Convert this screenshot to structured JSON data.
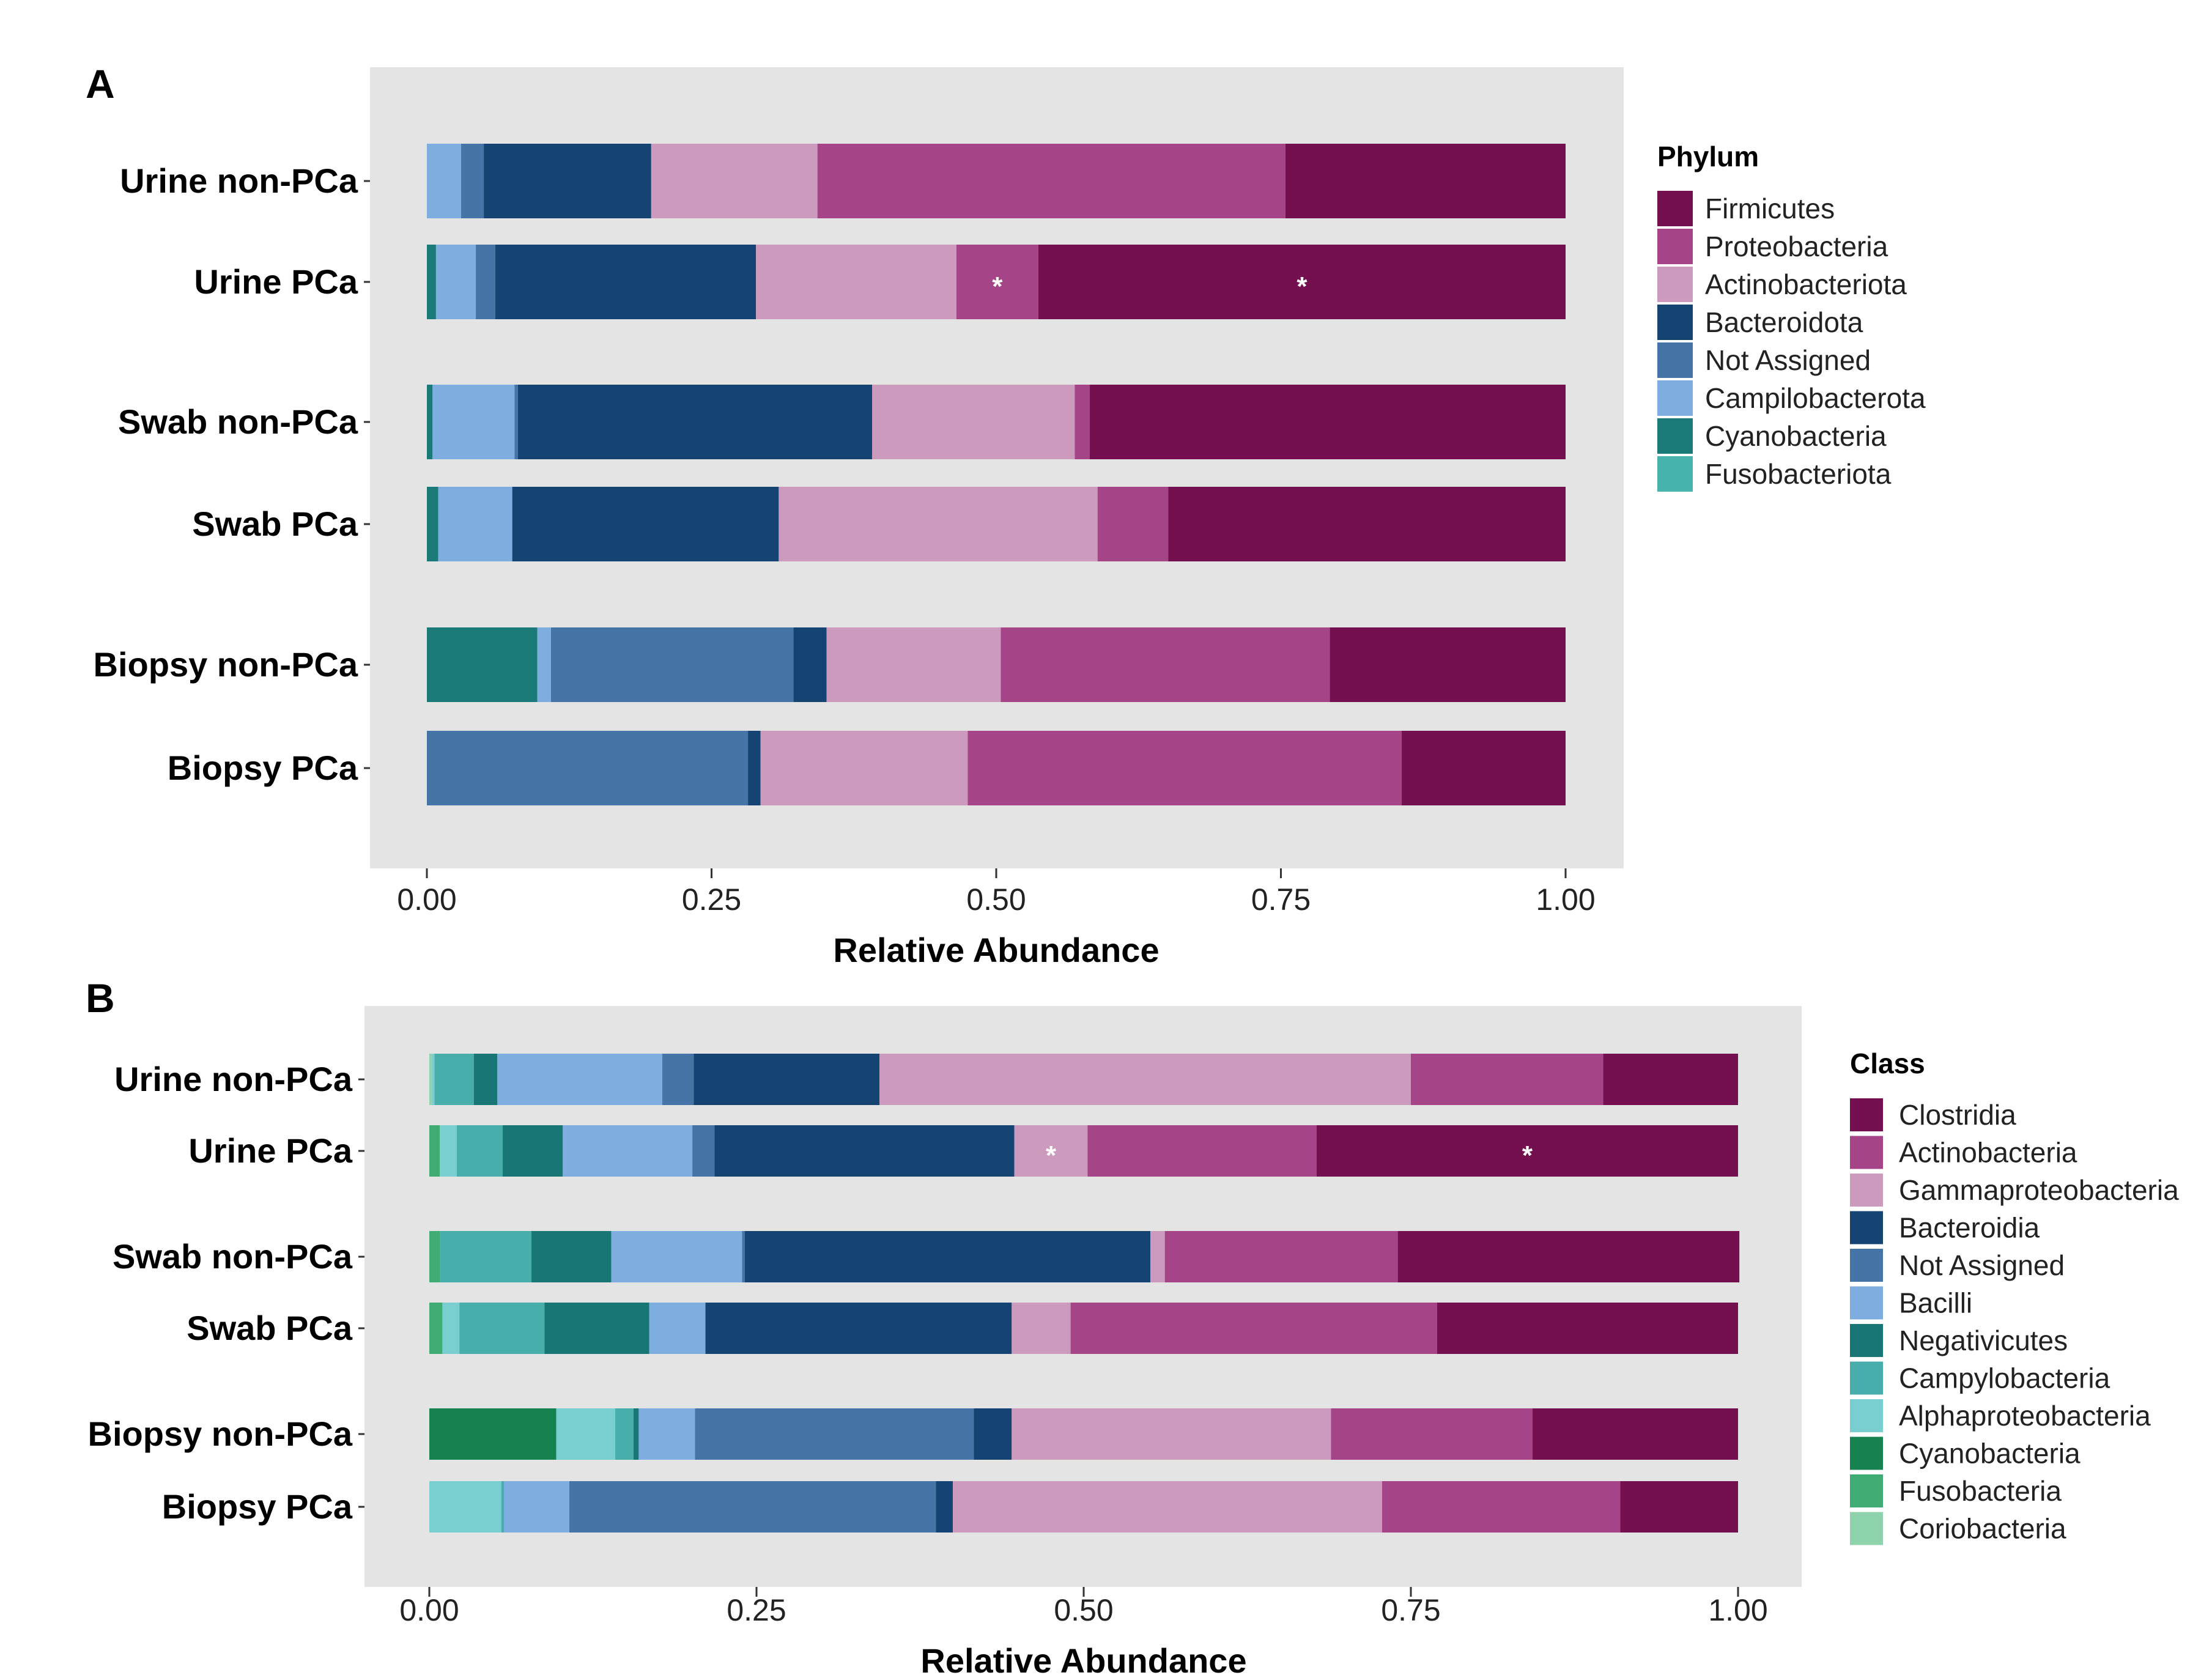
{
  "chart_data": [
    {
      "type": "bar",
      "orientation": "horizontal",
      "stacked": true,
      "panel_label": "A",
      "xlabel": "Relative Abundance",
      "ylabel": "",
      "xlim": [
        0,
        1
      ],
      "xticks": [
        "0.00",
        "0.25",
        "0.50",
        "0.75",
        "1.00"
      ],
      "grid": false,
      "legend_title": "Phylum",
      "legend_position": "right",
      "categories": [
        "Urine non-PCa",
        "Urine PCa",
        "Swab non-PCa",
        "Swab PCa",
        "Biopsy non-PCa",
        "Biopsy PCa"
      ],
      "series": [
        {
          "name": "Fusobacteriota",
          "color": "#48b3ad",
          "values": [
            0.0,
            0.0,
            0.0,
            0.0,
            0.0,
            0.0
          ]
        },
        {
          "name": "Cyanobacteria",
          "color": "#1a7a78",
          "values": [
            0.0,
            0.008,
            0.005,
            0.01,
            0.097,
            0.0
          ]
        },
        {
          "name": "Campilobacterota",
          "color": "#7eaee0",
          "values": [
            0.03,
            0.035,
            0.072,
            0.065,
            0.012,
            0.0
          ]
        },
        {
          "name": "Not Assigned",
          "color": "#4574a7",
          "values": [
            0.02,
            0.017,
            0.003,
            0.0,
            0.213,
            0.282
          ]
        },
        {
          "name": "Bacteroidota",
          "color": "#154473",
          "values": [
            0.147,
            0.229,
            0.311,
            0.234,
            0.029,
            0.011
          ]
        },
        {
          "name": "Actinobacteriota",
          "color": "#cc9abd",
          "values": [
            0.146,
            0.176,
            0.178,
            0.28,
            0.153,
            0.182
          ]
        },
        {
          "name": "Proteobacteria",
          "color": "#a54486",
          "values": [
            0.411,
            0.072,
            0.013,
            0.062,
            0.289,
            0.381
          ]
        },
        {
          "name": "Firmicutes",
          "color": "#74104f",
          "values": [
            0.246,
            0.463,
            0.418,
            0.349,
            0.207,
            0.144
          ]
        }
      ],
      "legend_order": [
        "Firmicutes",
        "Proteobacteria",
        "Actinobacteriota",
        "Bacteroidota",
        "Not Assigned",
        "Campilobacterota",
        "Cyanobacteria",
        "Fusobacteriota"
      ],
      "annotations": [
        {
          "category": "Urine PCa",
          "series": "Proteobacteria",
          "text": "*"
        },
        {
          "category": "Urine PCa",
          "series": "Firmicutes",
          "text": "*"
        }
      ]
    },
    {
      "type": "bar",
      "orientation": "horizontal",
      "stacked": true,
      "panel_label": "B",
      "xlabel": "Relative Abundance",
      "ylabel": "",
      "xlim": [
        0,
        1
      ],
      "xticks": [
        "0.00",
        "0.25",
        "0.50",
        "0.75",
        "1.00"
      ],
      "grid": false,
      "legend_title": "Class",
      "legend_position": "right",
      "categories": [
        "Urine non-PCa",
        "Urine PCa",
        "Swab non-PCa",
        "Swab PCa",
        "Biopsy non-PCa",
        "Biopsy PCa"
      ],
      "series": [
        {
          "name": "Coriobacteria",
          "color": "#8fd3ad",
          "values": [
            0.002,
            0.0,
            0.0,
            0.0,
            0.0,
            0.0
          ]
        },
        {
          "name": "Fusobacteria",
          "color": "#3fac74",
          "values": [
            0.0,
            0.008,
            0.008,
            0.01,
            0.0,
            0.0
          ]
        },
        {
          "name": "Cyanobacteria",
          "color": "#16824f",
          "values": [
            0.0,
            0.0,
            0.0,
            0.0,
            0.097,
            0.0
          ]
        },
        {
          "name": "Alphaproteobacteria",
          "color": "#79cfd0",
          "values": [
            0.002,
            0.013,
            0.0,
            0.013,
            0.045,
            0.055
          ]
        },
        {
          "name": "Campylobacteria",
          "color": "#48aeab",
          "values": [
            0.03,
            0.035,
            0.07,
            0.065,
            0.014,
            0.002
          ]
        },
        {
          "name": "Negativicutes",
          "color": "#187775",
          "values": [
            0.018,
            0.046,
            0.061,
            0.08,
            0.004,
            0.0
          ]
        },
        {
          "name": "Bacilli",
          "color": "#7eaee0",
          "values": [
            0.126,
            0.099,
            0.1,
            0.043,
            0.043,
            0.05
          ]
        },
        {
          "name": "Not Assigned",
          "color": "#4574a7",
          "values": [
            0.024,
            0.017,
            0.002,
            0.0,
            0.213,
            0.28
          ]
        },
        {
          "name": "Bacteroidia",
          "color": "#154473",
          "values": [
            0.142,
            0.229,
            0.31,
            0.234,
            0.029,
            0.013
          ]
        },
        {
          "name": "Gammaproteobacteria",
          "color": "#cc9abd",
          "values": [
            0.406,
            0.056,
            0.011,
            0.045,
            0.244,
            0.328
          ]
        },
        {
          "name": "Actinobacteria",
          "color": "#a54486",
          "values": [
            0.147,
            0.175,
            0.178,
            0.28,
            0.154,
            0.182
          ]
        },
        {
          "name": "Clostridia",
          "color": "#74104f",
          "values": [
            0.103,
            0.322,
            0.261,
            0.23,
            0.157,
            0.09
          ]
        }
      ],
      "legend_order": [
        "Clostridia",
        "Actinobacteria",
        "Gammaproteobacteria",
        "Bacteroidia",
        "Not Assigned",
        "Bacilli",
        "Negativicutes",
        "Campylobacteria",
        "Alphaproteobacteria",
        "Cyanobacteria",
        "Fusobacteria",
        "Coriobacteria"
      ],
      "annotations": [
        {
          "category": "Urine PCa",
          "series": "Gammaproteobacteria",
          "text": "*"
        },
        {
          "category": "Urine PCa",
          "series": "Clostridia",
          "text": "*"
        }
      ]
    }
  ]
}
